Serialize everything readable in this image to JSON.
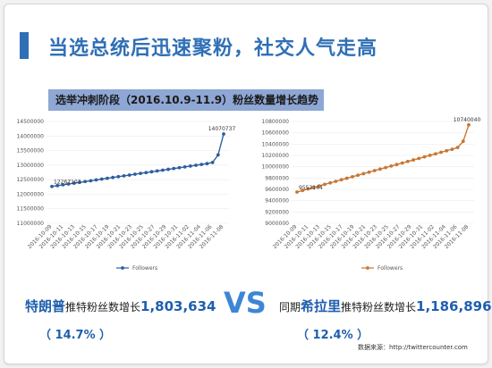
{
  "headline": "当选总统后迅速聚粉，社交人气走高",
  "subtitle": "选举冲刺阶段（2016.10.9-11.9）粉丝数量增长趋势",
  "trump": {
    "name": "特朗普",
    "stat_label": "推特粉丝数增长",
    "growth": "1,803,634",
    "pct": "（ 14.7% ）"
  },
  "vs": "VS",
  "clinton": {
    "prefix": "同期",
    "name": "希拉里",
    "stat_label": "推特粉丝数增长",
    "growth": "1,186,896",
    "pct": "（ 12.4% ）"
  },
  "source": "数据来源：http://twittercounter.com",
  "chart_data": [
    {
      "type": "line",
      "title": "",
      "color": "#2e5f9e",
      "ylim": [
        11000000,
        14500000
      ],
      "yticks": [
        "11000000",
        "11500000",
        "12000000",
        "12500000",
        "13000000",
        "13500000",
        "14000000",
        "14500000"
      ],
      "x_labels": [
        "2016-10-09",
        "2016-10-11",
        "2016-10-13",
        "2016-10-15",
        "2016-10-17",
        "2016-10-19",
        "2016-10-21",
        "2016-10-23",
        "2016-10-25",
        "2016-10-27",
        "2016-10-29",
        "2016-10-31",
        "2016-11-02",
        "2016-11-04",
        "2016-11-06",
        "2016-11-08"
      ],
      "series": [
        {
          "name": "Followers",
          "values": [
            12267103,
            12295000,
            12323000,
            12351000,
            12379000,
            12407000,
            12435000,
            12463000,
            12491000,
            12519000,
            12547000,
            12575000,
            12603000,
            12631000,
            12659000,
            12687000,
            12715000,
            12743000,
            12771000,
            12799000,
            12827000,
            12855000,
            12883000,
            12911000,
            12939000,
            12967000,
            12995000,
            13023000,
            13051000,
            13090000,
            13350000,
            14070737
          ]
        }
      ],
      "annotations": [
        {
          "index": 0,
          "text": "12267103"
        },
        {
          "index": 31,
          "text": "14070737"
        }
      ]
    },
    {
      "type": "line",
      "title": "",
      "color": "#c87632",
      "ylim": [
        9000000,
        10800000
      ],
      "yticks": [
        "9000000",
        "9200000",
        "9400000",
        "9600000",
        "9800000",
        "10000000",
        "10200000",
        "10400000",
        "10600000",
        "10800000"
      ],
      "x_labels": [
        "2016-10-09",
        "2016-10-11",
        "2016-10-13",
        "2016-10-15",
        "2016-10-17",
        "2016-10-19",
        "2016-10-21",
        "2016-10-23",
        "2016-10-25",
        "2016-10-27",
        "2016-10-29",
        "2016-10-31",
        "2016-11-02",
        "2016-11-04",
        "2016-11-06",
        "2016-11-08"
      ],
      "series": [
        {
          "name": "Followers",
          "values": [
            9553144,
            9580000,
            9607000,
            9634000,
            9661000,
            9688000,
            9715000,
            9742000,
            9769000,
            9796000,
            9823000,
            9850000,
            9877000,
            9904000,
            9931000,
            9958000,
            9985000,
            10012000,
            10039000,
            10066000,
            10093000,
            10120000,
            10147000,
            10174000,
            10201000,
            10228000,
            10255000,
            10282000,
            10309000,
            10340000,
            10450000,
            10740040
          ]
        }
      ],
      "annotations": [
        {
          "index": 0,
          "text": "9553144"
        },
        {
          "index": 31,
          "text": "10740040"
        }
      ]
    }
  ]
}
